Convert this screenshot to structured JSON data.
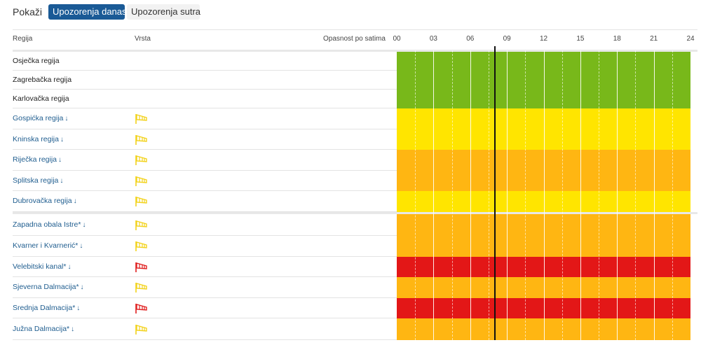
{
  "toolbar": {
    "show_label": "Pokaži",
    "tab_today": "Upozorenja danas",
    "tab_tomorrow": "Upozorenja sutra"
  },
  "header": {
    "col_region": "Regija",
    "col_type": "Vrsta",
    "col_danger": "Opasnost po satima"
  },
  "hours": [
    "00",
    "03",
    "06",
    "09",
    "12",
    "15",
    "18",
    "21",
    "24"
  ],
  "current_time_hours": 8,
  "colors": {
    "green": "#78b81a",
    "yellow": "#ffe500",
    "orange": "#ffb612",
    "red": "#e31717",
    "icon_yellow": "#f2d21b",
    "icon_red": "#e02020",
    "link": "#1f5d8f",
    "tab_active": "#1a5a96"
  },
  "groups": [
    {
      "rows": [
        {
          "region": "Osječka regija",
          "link": false,
          "icon": null,
          "level": "green"
        },
        {
          "region": "Zagrebačka regija",
          "link": false,
          "icon": null,
          "level": "green"
        },
        {
          "region": "Karlovačka regija",
          "link": false,
          "icon": null,
          "level": "green"
        },
        {
          "region": "Gospićka regija",
          "link": true,
          "icon": "yellow",
          "level": "yellow"
        },
        {
          "region": "Kninska regija",
          "link": true,
          "icon": "yellow",
          "level": "yellow"
        },
        {
          "region": "Riječka regija",
          "link": true,
          "icon": "yellow",
          "level": "orange"
        },
        {
          "region": "Splitska regija",
          "link": true,
          "icon": "yellow",
          "level": "orange"
        },
        {
          "region": "Dubrovačka regija",
          "link": true,
          "icon": "yellow",
          "level": "yellow"
        }
      ]
    },
    {
      "rows": [
        {
          "region": "Zapadna obala Istre*",
          "link": true,
          "icon": "yellow",
          "level": "orange"
        },
        {
          "region": "Kvarner i Kvarnerić*",
          "link": true,
          "icon": "yellow",
          "level": "orange"
        },
        {
          "region": "Velebitski kanal*",
          "link": true,
          "icon": "red",
          "level": "red"
        },
        {
          "region": "Sjeverna Dalmacija*",
          "link": true,
          "icon": "yellow",
          "level": "orange"
        },
        {
          "region": "Srednja Dalmacija*",
          "link": true,
          "icon": "red",
          "level": "red"
        },
        {
          "region": "Južna Dalmacija*",
          "link": true,
          "icon": "yellow",
          "level": "orange"
        }
      ]
    }
  ]
}
